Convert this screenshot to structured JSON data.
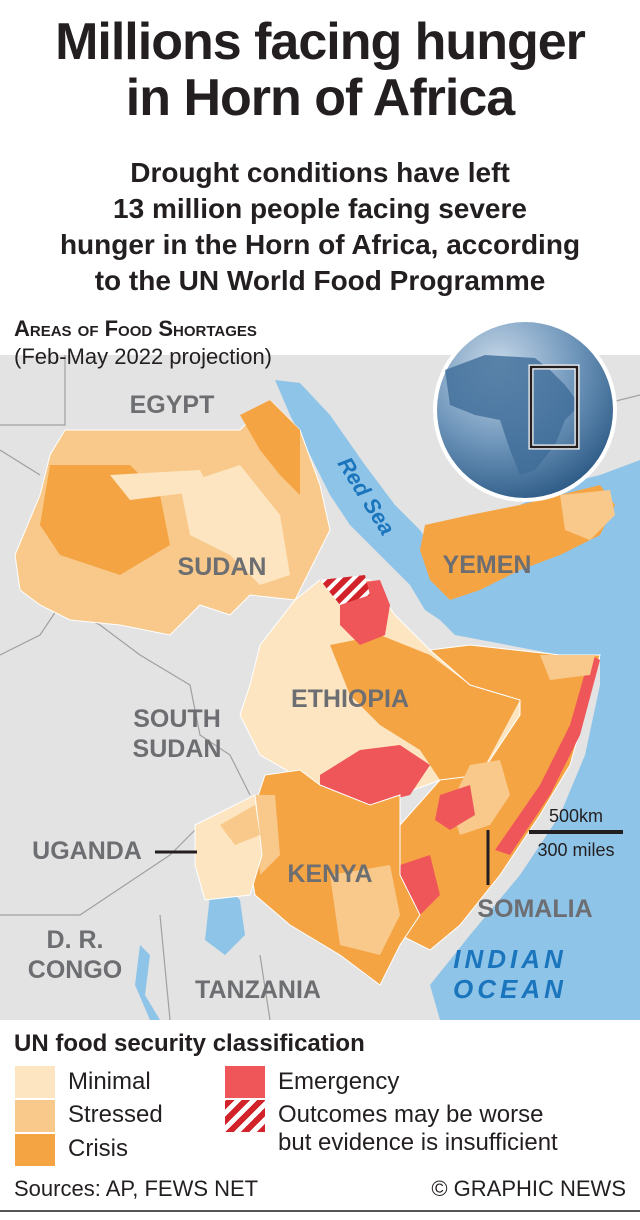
{
  "title": "Millions facing hunger in Horn of Africa",
  "title_lines": [
    "Millions facing hunger",
    "in Horn of Africa"
  ],
  "subtitle_lines": [
    "Drought conditions have left",
    "13 million people facing severe",
    "hunger in the Horn of Africa, according",
    "to the UN World Food Programme"
  ],
  "map": {
    "heading": "Areas of Food Shortages",
    "period": "(Feb-May 2022 projection)",
    "countries": [
      "EGYPT",
      "SUDAN",
      "YEMEN",
      "ETHIOPIA",
      "SOUTH",
      "SUDAN",
      "UGANDA",
      "KENYA",
      "SOMALIA",
      "D. R.",
      "CONGO",
      "TANZANIA"
    ],
    "water": [
      "Red Sea",
      "INDIAN",
      "OCEAN"
    ],
    "scale": {
      "km": "500km",
      "miles": "300 miles"
    },
    "locator_globe": "globe-africa-icon"
  },
  "legend": {
    "title": "UN food security classification",
    "items": [
      {
        "label": "Minimal",
        "color": "#fce5c0"
      },
      {
        "label": "Stressed",
        "color": "#f8c98a"
      },
      {
        "label": "Crisis",
        "color": "#f5a443"
      },
      {
        "label": "Emergency",
        "color": "#ef5659"
      },
      {
        "label_lines": [
          "Outcomes may be worse",
          "but evidence is insufficient"
        ],
        "pattern": "red-white-hatch",
        "color": "#d2232a"
      }
    ]
  },
  "colors": {
    "sea": "#8fc4e9",
    "land": "#e3e3e3",
    "label": "#6d6e71",
    "ocean_label": "#1b75bc"
  },
  "footer": {
    "sources": "Sources: AP, FEWS NET",
    "credit": "© GRAPHIC NEWS"
  }
}
